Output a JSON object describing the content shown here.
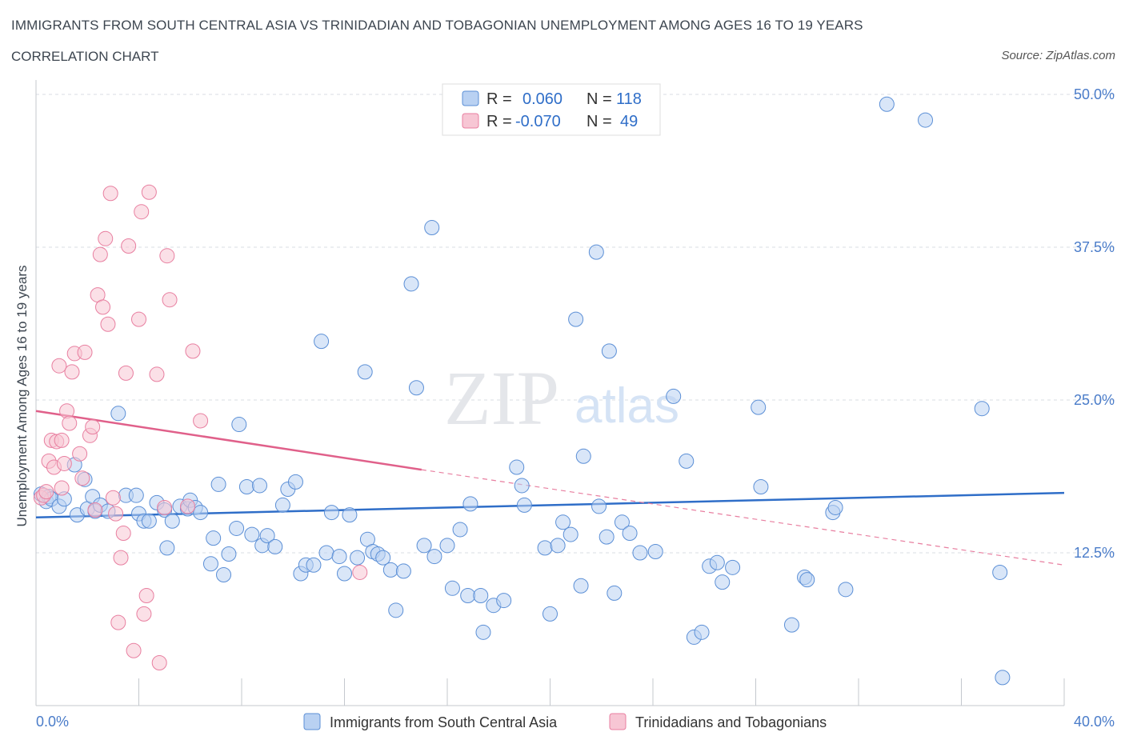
{
  "header": {
    "title": "IMMIGRANTS FROM SOUTH CENTRAL ASIA VS TRINIDADIAN AND TOBAGONIAN UNEMPLOYMENT AMONG AGES 16 TO 19 YEARS",
    "subtitle": "CORRELATION CHART",
    "source": "Source: ZipAtlas.com"
  },
  "colors": {
    "blue": "#5b8fd6",
    "blue_fill": "#b9d1f2",
    "blue_line": "#2f6ec8",
    "pink": "#e87fa0",
    "pink_fill": "#f7c6d4",
    "pink_line": "#e0608a",
    "label": "#4a7cc9"
  },
  "legend_top": {
    "series1": {
      "r_label": "R =",
      "r_value": "0.060",
      "n_label": "N =",
      "n_value": "118"
    },
    "series2": {
      "r_label": "R =",
      "r_value": "-0.070",
      "n_label": "N =",
      "n_value": "49"
    }
  },
  "watermark": {
    "zip": "ZIP",
    "atlas": "atlas"
  },
  "chart_data": {
    "type": "scatter",
    "xlabel": "",
    "ylabel": "Unemployment Among Ages 16 to 19 years",
    "xlim": [
      0,
      40
    ],
    "ylim": [
      0,
      52
    ],
    "x_tick_labels": [
      "0.0%",
      "40.0%"
    ],
    "y_ticks": [
      12.5,
      25.0,
      37.5,
      50.0
    ],
    "y_tick_labels": [
      "12.5%",
      "25.0%",
      "37.5%",
      "50.0%"
    ],
    "grid": true,
    "legend_position": "top-center",
    "series": [
      {
        "name": "Immigrants from South Central Asia",
        "color": "#5b8fd6",
        "trend": {
          "x": [
            0,
            40
          ],
          "y": [
            15.4,
            17.4
          ]
        },
        "points": [
          [
            0.2,
            17.3
          ],
          [
            0.4,
            16.7
          ],
          [
            0.5,
            17.1
          ],
          [
            0.6,
            16.9
          ],
          [
            0.9,
            16.3
          ],
          [
            1.1,
            16.9
          ],
          [
            1.5,
            19.7
          ],
          [
            1.6,
            15.6
          ],
          [
            1.9,
            18.5
          ],
          [
            2.0,
            16.1
          ],
          [
            2.2,
            17.1
          ],
          [
            2.3,
            15.9
          ],
          [
            2.5,
            16.4
          ],
          [
            2.8,
            15.9
          ],
          [
            3.2,
            23.9
          ],
          [
            3.5,
            17.2
          ],
          [
            3.9,
            17.2
          ],
          [
            4.0,
            15.7
          ],
          [
            4.2,
            15.1
          ],
          [
            4.4,
            15.1
          ],
          [
            4.7,
            16.6
          ],
          [
            5.0,
            16.0
          ],
          [
            5.1,
            12.9
          ],
          [
            5.3,
            15.1
          ],
          [
            5.6,
            16.3
          ],
          [
            5.9,
            16.1
          ],
          [
            6.0,
            16.8
          ],
          [
            6.2,
            16.2
          ],
          [
            6.4,
            15.8
          ],
          [
            6.8,
            11.6
          ],
          [
            6.9,
            13.7
          ],
          [
            7.1,
            18.1
          ],
          [
            7.3,
            10.7
          ],
          [
            7.5,
            12.4
          ],
          [
            7.8,
            14.5
          ],
          [
            7.9,
            23.0
          ],
          [
            8.2,
            17.9
          ],
          [
            8.4,
            14.0
          ],
          [
            8.7,
            18.0
          ],
          [
            8.8,
            13.1
          ],
          [
            9.0,
            13.9
          ],
          [
            9.3,
            13.0
          ],
          [
            9.6,
            16.4
          ],
          [
            9.8,
            17.7
          ],
          [
            10.1,
            18.3
          ],
          [
            10.3,
            10.8
          ],
          [
            10.5,
            11.5
          ],
          [
            10.8,
            11.5
          ],
          [
            11.1,
            29.8
          ],
          [
            11.3,
            12.5
          ],
          [
            11.5,
            15.8
          ],
          [
            11.8,
            12.2
          ],
          [
            12.0,
            10.8
          ],
          [
            12.2,
            15.6
          ],
          [
            12.5,
            12.1
          ],
          [
            12.8,
            27.3
          ],
          [
            12.9,
            13.6
          ],
          [
            13.1,
            12.6
          ],
          [
            13.3,
            12.4
          ],
          [
            13.5,
            12.1
          ],
          [
            13.8,
            11.1
          ],
          [
            14.0,
            7.8
          ],
          [
            14.3,
            11.0
          ],
          [
            14.6,
            34.5
          ],
          [
            14.8,
            26.0
          ],
          [
            15.1,
            13.1
          ],
          [
            15.4,
            39.1
          ],
          [
            15.5,
            12.2
          ],
          [
            16.0,
            13.1
          ],
          [
            16.2,
            9.6
          ],
          [
            16.5,
            14.4
          ],
          [
            16.8,
            9.0
          ],
          [
            16.9,
            16.5
          ],
          [
            17.3,
            9.0
          ],
          [
            17.4,
            6.0
          ],
          [
            17.8,
            8.2
          ],
          [
            18.2,
            8.6
          ],
          [
            18.7,
            19.5
          ],
          [
            18.9,
            18.0
          ],
          [
            19.0,
            16.4
          ],
          [
            19.8,
            12.9
          ],
          [
            20.0,
            7.5
          ],
          [
            20.3,
            13.1
          ],
          [
            20.5,
            15.0
          ],
          [
            20.8,
            14.0
          ],
          [
            21.0,
            31.6
          ],
          [
            21.2,
            9.8
          ],
          [
            21.3,
            20.4
          ],
          [
            21.8,
            37.1
          ],
          [
            21.9,
            16.3
          ],
          [
            22.2,
            13.8
          ],
          [
            22.3,
            29.0
          ],
          [
            22.5,
            9.2
          ],
          [
            22.8,
            15.0
          ],
          [
            23.1,
            14.1
          ],
          [
            23.5,
            12.5
          ],
          [
            24.1,
            12.6
          ],
          [
            24.8,
            25.3
          ],
          [
            25.3,
            20.0
          ],
          [
            25.6,
            5.6
          ],
          [
            25.9,
            6.0
          ],
          [
            26.2,
            11.4
          ],
          [
            26.5,
            11.7
          ],
          [
            26.7,
            10.1
          ],
          [
            27.1,
            11.3
          ],
          [
            28.1,
            24.4
          ],
          [
            28.2,
            17.9
          ],
          [
            29.4,
            6.6
          ],
          [
            29.9,
            10.5
          ],
          [
            30.0,
            10.3
          ],
          [
            31.0,
            15.8
          ],
          [
            31.1,
            16.2
          ],
          [
            31.5,
            9.5
          ],
          [
            33.1,
            49.2
          ],
          [
            34.6,
            47.9
          ],
          [
            36.8,
            24.3
          ],
          [
            37.5,
            10.9
          ],
          [
            37.6,
            2.3
          ]
        ]
      },
      {
        "name": "Trinidadians and Tobagonians",
        "color": "#e87fa0",
        "trend": {
          "x": [
            0,
            15.0
          ],
          "y": [
            24.1,
            19.3
          ]
        },
        "trend_dashed": {
          "x": [
            15.0,
            40
          ],
          "y": [
            19.3,
            11.5
          ]
        },
        "points": [
          [
            0.2,
            17.0
          ],
          [
            0.3,
            17.2
          ],
          [
            0.5,
            20.0
          ],
          [
            0.6,
            21.7
          ],
          [
            0.7,
            19.5
          ],
          [
            0.8,
            21.6
          ],
          [
            0.9,
            27.8
          ],
          [
            1.0,
            21.7
          ],
          [
            1.1,
            19.8
          ],
          [
            1.2,
            24.1
          ],
          [
            1.3,
            23.1
          ],
          [
            1.4,
            27.3
          ],
          [
            1.5,
            28.8
          ],
          [
            1.7,
            20.6
          ],
          [
            1.8,
            18.6
          ],
          [
            1.9,
            28.9
          ],
          [
            2.1,
            22.1
          ],
          [
            2.2,
            22.8
          ],
          [
            2.3,
            16.0
          ],
          [
            2.4,
            33.6
          ],
          [
            2.5,
            36.9
          ],
          [
            2.6,
            32.6
          ],
          [
            2.7,
            38.2
          ],
          [
            2.8,
            31.2
          ],
          [
            2.9,
            41.9
          ],
          [
            3.0,
            17.0
          ],
          [
            3.1,
            15.7
          ],
          [
            3.2,
            6.8
          ],
          [
            3.3,
            12.1
          ],
          [
            3.4,
            14.1
          ],
          [
            3.5,
            27.2
          ],
          [
            3.6,
            37.6
          ],
          [
            3.8,
            4.5
          ],
          [
            4.0,
            31.6
          ],
          [
            4.1,
            40.4
          ],
          [
            4.2,
            7.5
          ],
          [
            4.3,
            9.0
          ],
          [
            4.4,
            42.0
          ],
          [
            4.7,
            27.1
          ],
          [
            4.8,
            3.5
          ],
          [
            5.0,
            16.2
          ],
          [
            5.1,
            36.8
          ],
          [
            5.2,
            33.2
          ],
          [
            5.9,
            16.3
          ],
          [
            6.1,
            29.0
          ],
          [
            6.4,
            23.3
          ],
          [
            12.6,
            10.9
          ],
          [
            1.0,
            17.8
          ],
          [
            0.4,
            17.5
          ]
        ]
      }
    ]
  }
}
